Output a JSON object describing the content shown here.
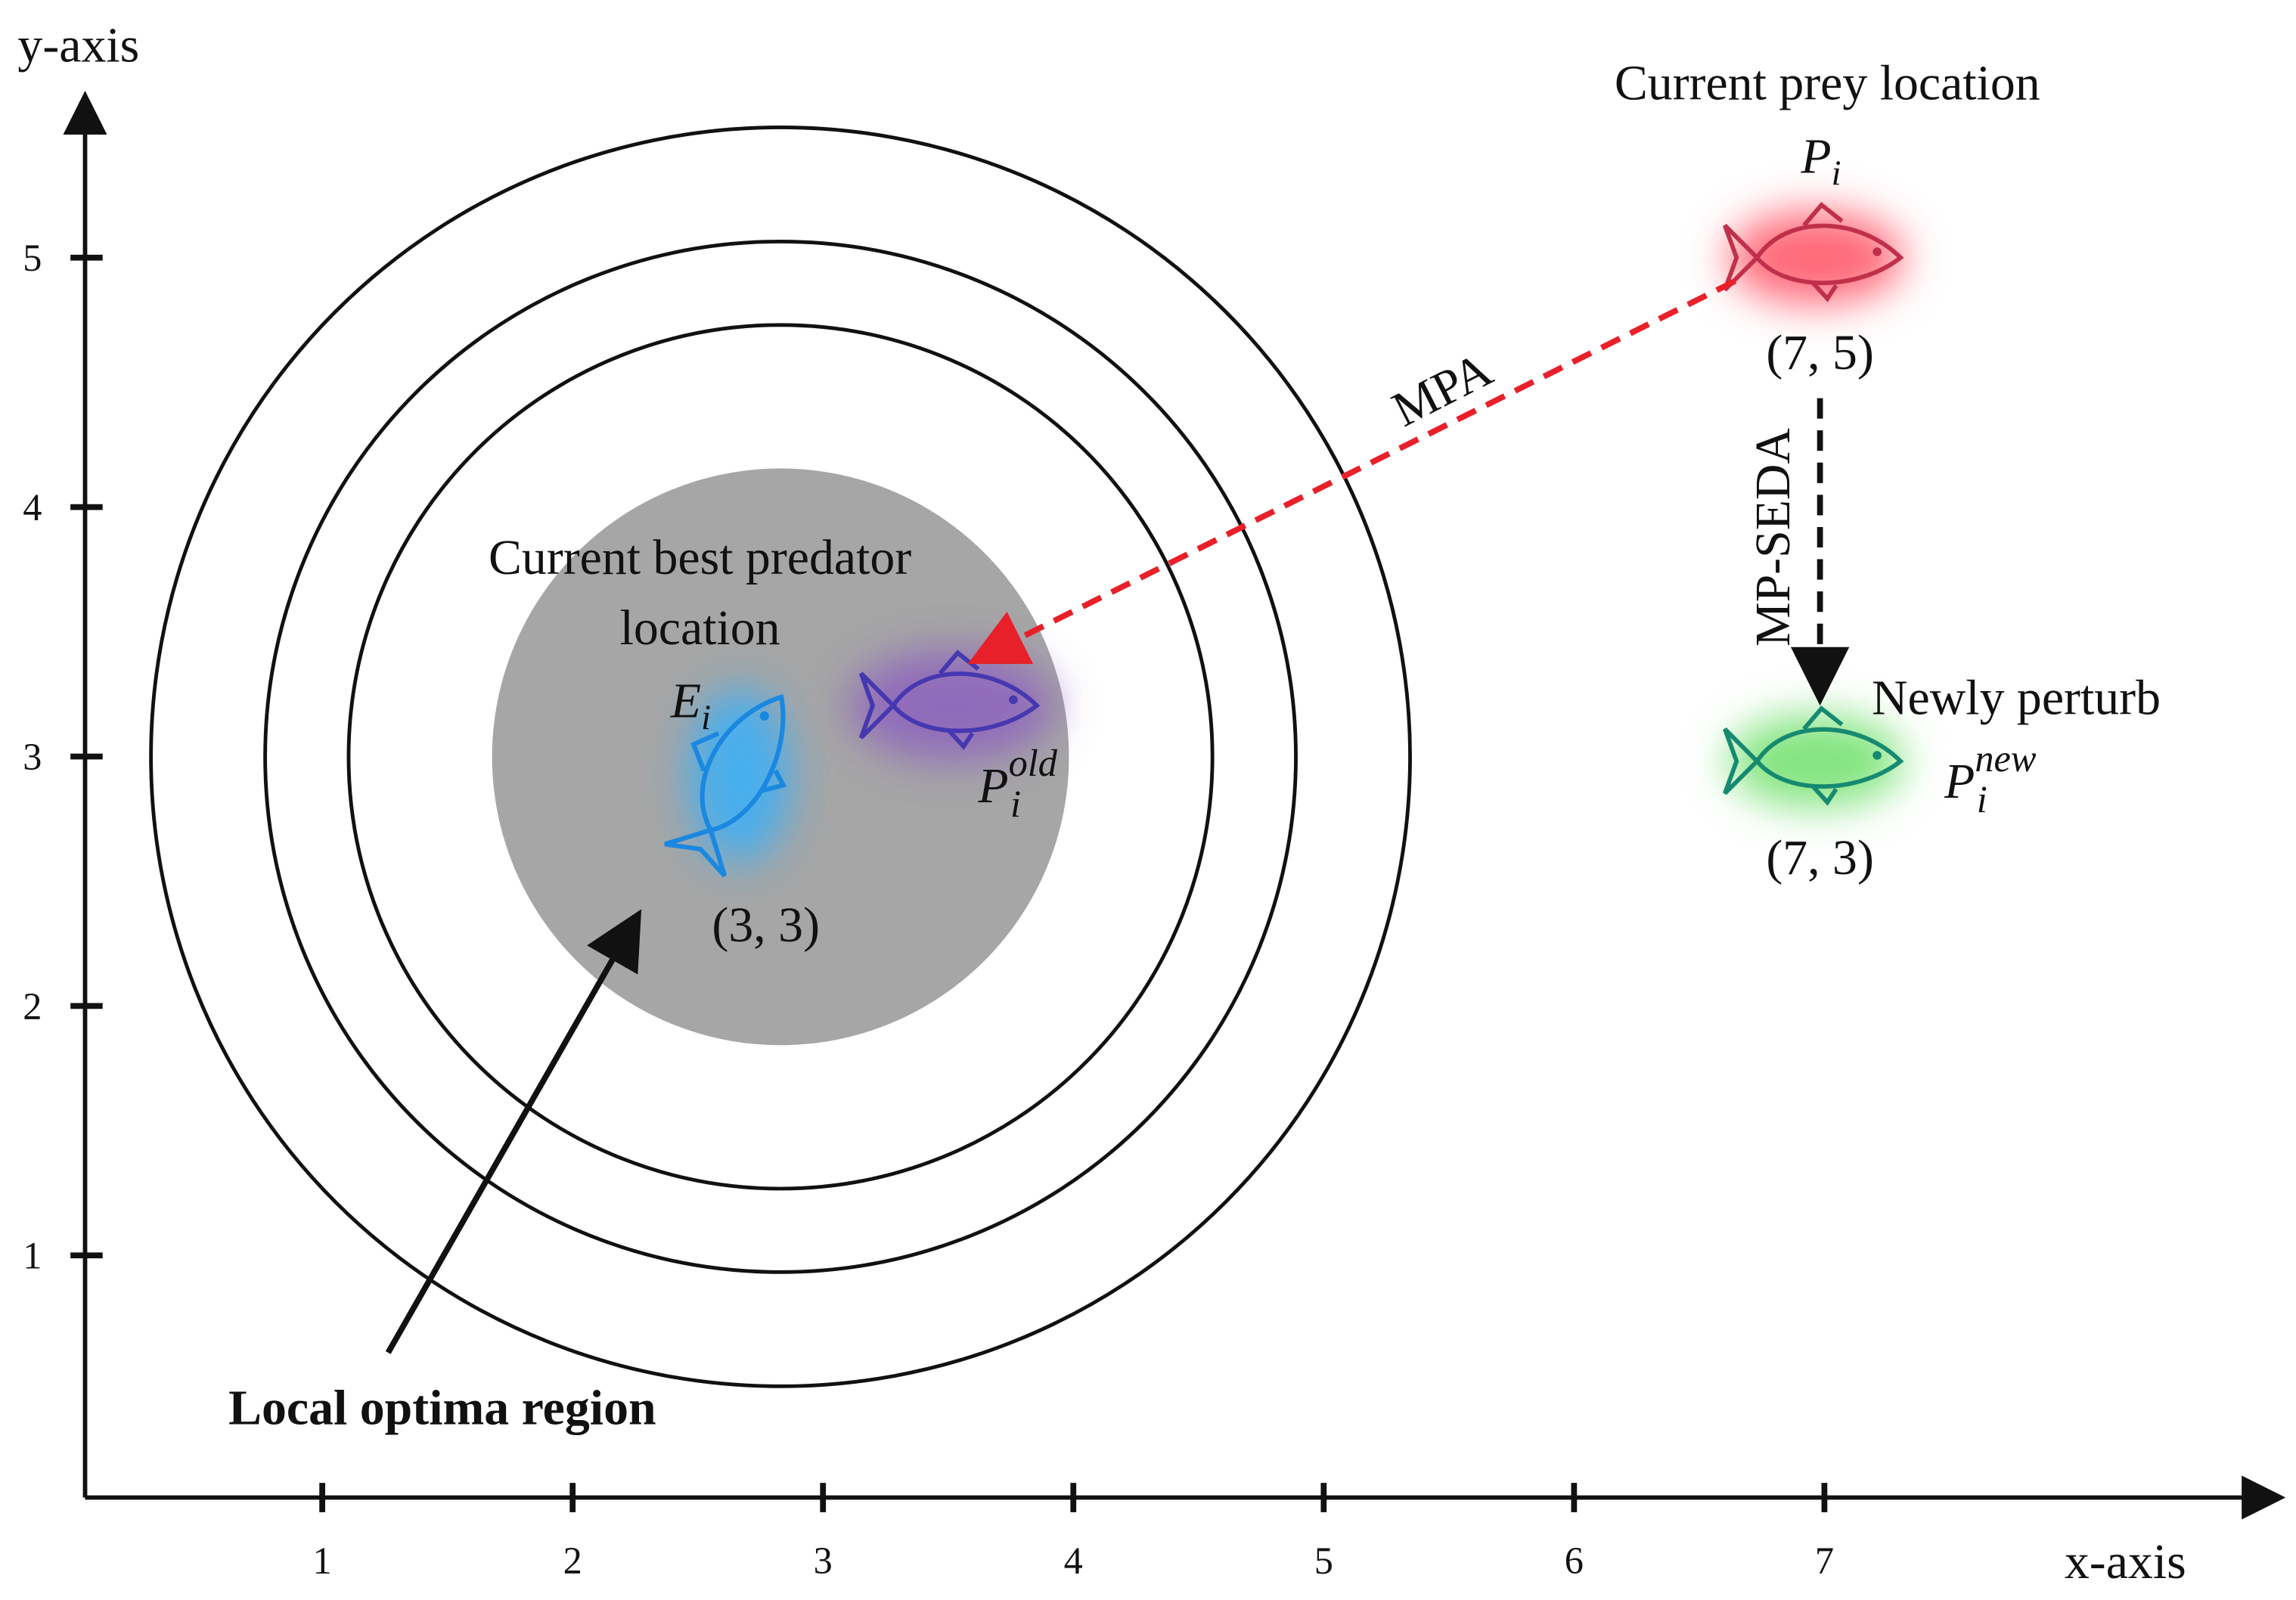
{
  "axes": {
    "x_label": "x-axis",
    "y_label": "y-axis",
    "x_ticks": [
      1,
      2,
      3,
      4,
      5,
      6,
      7
    ],
    "y_ticks": [
      1,
      2,
      3,
      4,
      5
    ]
  },
  "prey": {
    "caption": "Current prey location",
    "symbol": {
      "base": "P",
      "sub": "i"
    },
    "coords": "(7, 5)"
  },
  "arrows": {
    "mpa": "MPA",
    "mp_seda": "MP-SEDA"
  },
  "new_prey": {
    "caption": "Newly perturb",
    "symbol": {
      "base": "P",
      "sub": "i",
      "sup": "new"
    },
    "coords": "(7, 3)"
  },
  "predator": {
    "caption_lines": [
      "Current best predator",
      "location"
    ],
    "symbol": {
      "base": "E",
      "sub": "i"
    },
    "coords": "(3, 3)"
  },
  "old_prey": {
    "symbol": {
      "base": "P",
      "sub": "i",
      "sup": "old"
    }
  },
  "region": {
    "label": "Local optima region"
  }
}
